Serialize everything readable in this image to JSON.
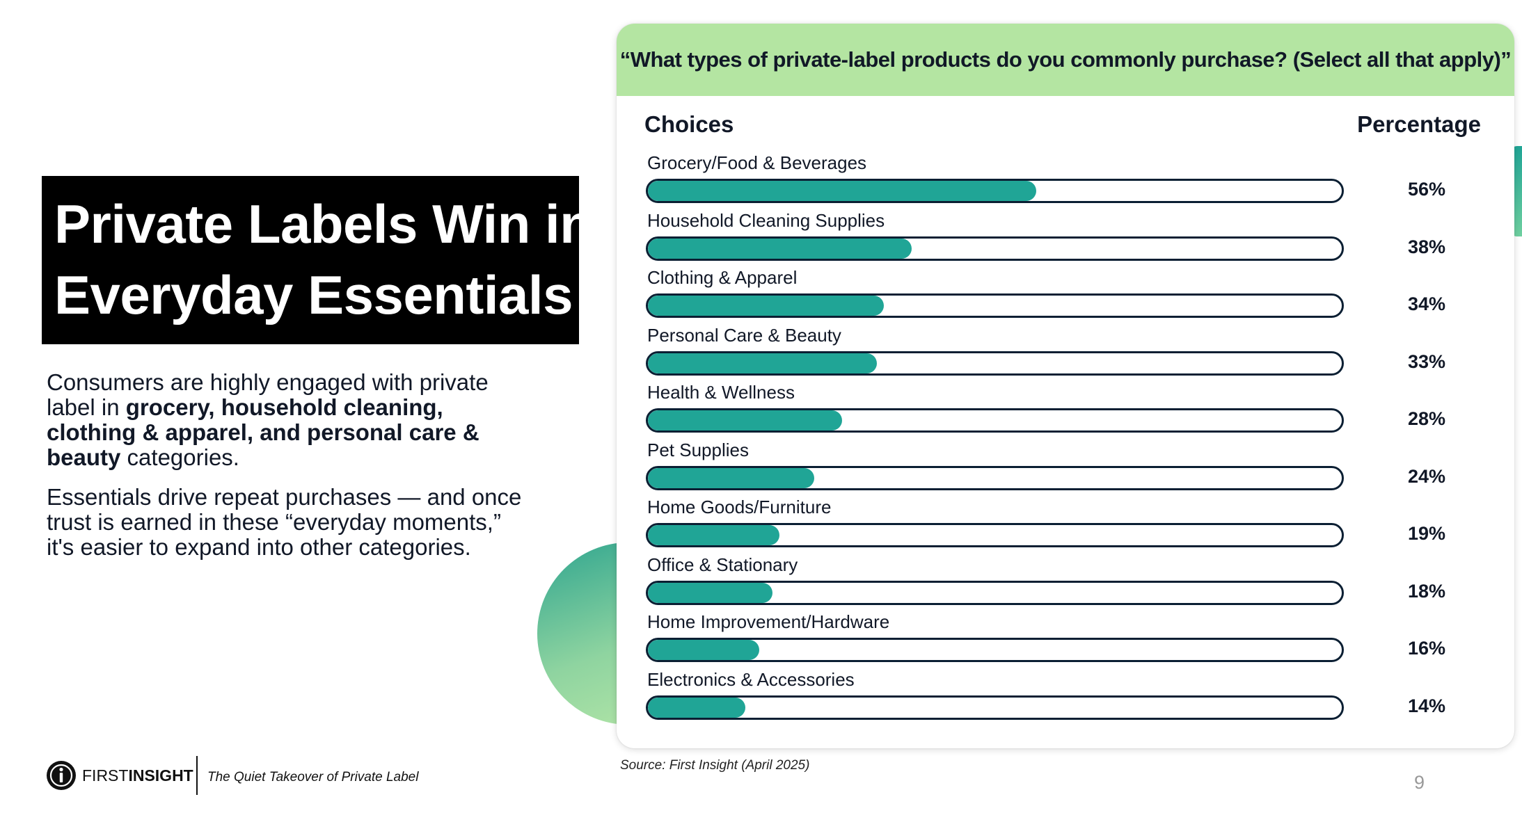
{
  "slide": {
    "title_lines": [
      "Private Labels Win in",
      "Everyday Essentials"
    ],
    "para1": {
      "lead": "Consumers are highly engaged with private label in ",
      "bold": "grocery, household cleaning, clothing & apparel, and personal care & beauty",
      "tail": " categories."
    },
    "para2": "Essentials drive repeat purchases — and once trust is earned in these “everyday moments,” it's easier to expand into other categories.",
    "source": "Source: First Insight (April 2025)",
    "page_number": "9"
  },
  "footer": {
    "logo_first": "FIRST",
    "logo_second": "INSIGHT",
    "tagline": "The Quiet Takeover of Private Label"
  },
  "colors": {
    "bar_fill": "#20a596",
    "header_bg": "#b4e5a2",
    "bar_outline": "#0b1f33"
  },
  "chart_data": {
    "type": "bar",
    "title": "“What types of private-label products do you commonly purchase? (Select all that apply)”",
    "column_headers": {
      "choices": "Choices",
      "percentage": "Percentage"
    },
    "categories": [
      "Grocery/Food & Beverages",
      "Household Cleaning Supplies",
      "Clothing & Apparel",
      "Personal Care & Beauty",
      "Health & Wellness",
      "Pet Supplies",
      "Home Goods/Furniture",
      "Office & Stationary",
      "Home Improvement/Hardware",
      "Electronics & Accessories"
    ],
    "values": [
      56,
      38,
      34,
      33,
      28,
      24,
      19,
      18,
      16,
      14
    ],
    "value_labels": [
      "56%",
      "38%",
      "34%",
      "33%",
      "28%",
      "24%",
      "19%",
      "18%",
      "16%",
      "14%"
    ],
    "xlim": [
      0,
      100
    ],
    "orientation": "horizontal",
    "grid": false
  }
}
